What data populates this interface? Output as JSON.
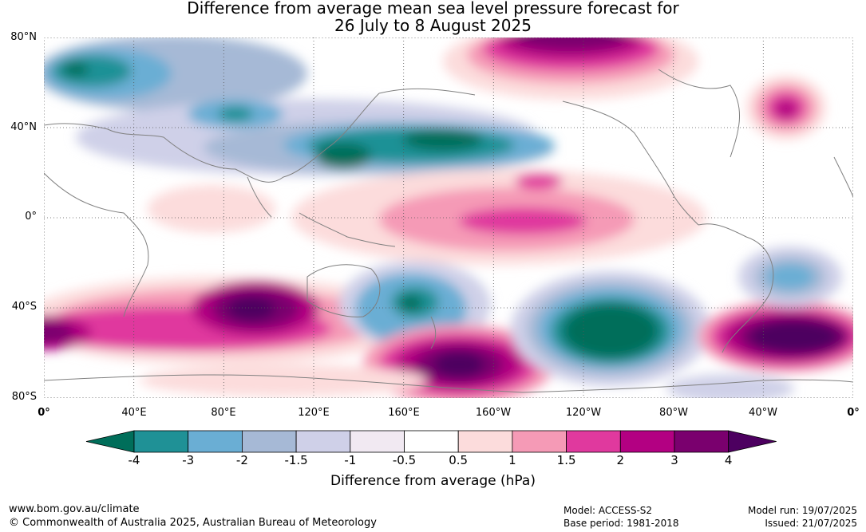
{
  "title": {
    "line1": "Difference from average mean sea level pressure forecast for",
    "line2": "26 July to 8 August 2025"
  },
  "map": {
    "lat_labels": [
      "80°N",
      "40°N",
      "0°",
      "40°S",
      "80°S"
    ],
    "lon_labels": [
      "0°",
      "40°E",
      "80°E",
      "120°E",
      "160°E",
      "160°W",
      "120°W",
      "80°W",
      "40°W",
      "0°"
    ],
    "background_color": "#ffffff",
    "coastline_color": "#808080",
    "grid": "dotted"
  },
  "colorbar": {
    "title": "Difference from average (hPa)",
    "ticks": [
      "-4",
      "-3",
      "-2",
      "-1.5",
      "-1",
      "-0.5",
      "0.5",
      "1",
      "1.5",
      "2",
      "3",
      "4"
    ],
    "colors": [
      "#006e5a",
      "#1f9196",
      "#6aaed4",
      "#a6b9d6",
      "#cfd0e8",
      "#f1e9f2",
      "#ffffff",
      "#fcdcdc",
      "#f59ab6",
      "#e0399e",
      "#b30082",
      "#7a006e",
      "#4d0060"
    ]
  },
  "footer": {
    "website": "www.bom.gov.au/climate",
    "copyright": "© Commonwealth of Australia 2025, Australian Bureau of Meteorology",
    "model": "Model: ACCESS-S2",
    "base_period": "Base period: 1981-2018",
    "model_run": "Model run: 19/07/2025",
    "issued": "Issued: 21/07/2025"
  }
}
